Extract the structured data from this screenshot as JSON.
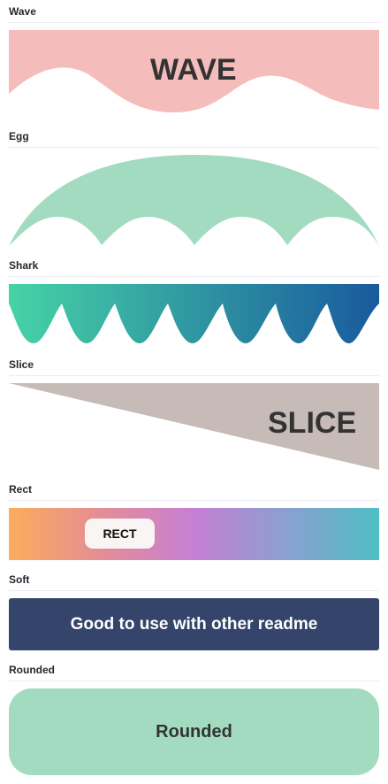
{
  "sections": {
    "wave": {
      "label": "Wave",
      "text": "WAVE",
      "color": "#f4bcbb"
    },
    "egg": {
      "label": "Egg",
      "color": "#a3dbc1"
    },
    "shark": {
      "label": "Shark",
      "gradient_start": "#46d3a6",
      "gradient_end": "#195a9e"
    },
    "slice": {
      "label": "Slice",
      "text": "SLICE",
      "color": "#c6bbb7"
    },
    "rect": {
      "label": "Rect",
      "text": "RECT",
      "gradient": [
        "#fcac5c",
        "#c67fd5",
        "#4fbfc5"
      ]
    },
    "soft": {
      "label": "Soft",
      "text": "Good to use with other readme",
      "color": "#34446a"
    },
    "rounded": {
      "label": "Rounded",
      "text": "Rounded",
      "color": "#a3dbc1"
    }
  }
}
